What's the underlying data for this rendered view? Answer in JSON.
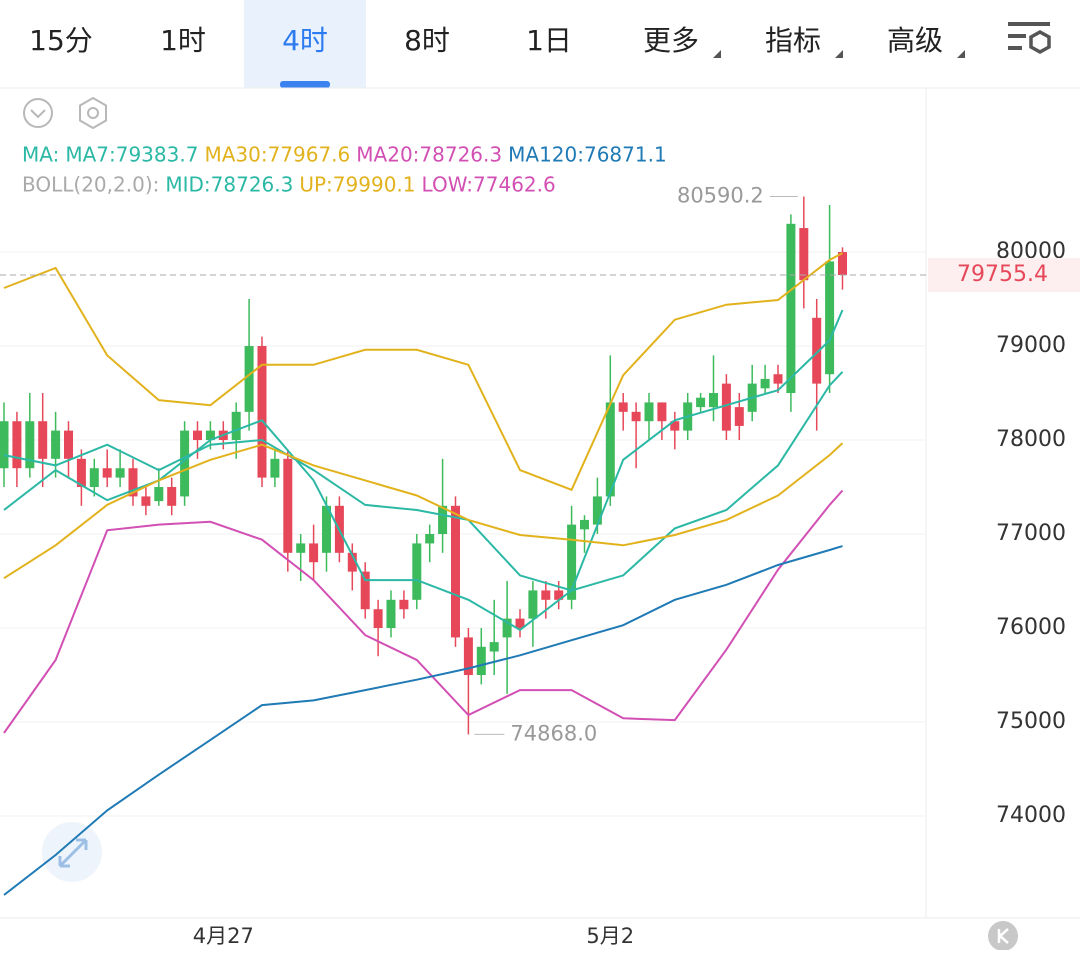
{
  "tabs": [
    "15分",
    "1时",
    "4时",
    "8时",
    "1日",
    "更多",
    "指标",
    "高级"
  ],
  "active_tab": 2,
  "chart_data": {
    "type": "candlestick",
    "ma_legend": [
      "MA:",
      "MA7:79383.7",
      "MA30:77967.6",
      "MA20:78726.3",
      "MA120:76871.1"
    ],
    "ma_legend_colors": [
      "#2bb8a5",
      "#2bb8a5",
      "#e2b21d",
      "#d24fb4",
      "#1f7ab5"
    ],
    "boll_legend": [
      "BOLL(20,2.0):",
      "MID:78726.3",
      "UP:79990.1",
      "LOW:77462.6"
    ],
    "boll_legend_colors": [
      "#aaaaaa",
      "#2bb8a5",
      "#e2b21d",
      "#d24fb4"
    ],
    "categories": [
      null,
      null,
      null,
      null,
      null,
      null,
      null,
      null,
      null,
      null,
      null,
      null,
      null,
      null,
      null,
      null,
      null,
      "4月27",
      null,
      null,
      null,
      null,
      null,
      null,
      null,
      null,
      null,
      null,
      null,
      null,
      null,
      null,
      null,
      null,
      null,
      null,
      null,
      null,
      null,
      null,
      null,
      null,
      null,
      null,
      null,
      null,
      null,
      "5月2",
      null,
      null,
      null,
      null,
      null,
      null,
      null,
      null,
      null,
      null,
      null,
      null,
      null,
      null,
      null,
      null,
      null,
      null
    ],
    "open": [
      77700,
      78200,
      77700,
      78200,
      77800,
      78100,
      77800,
      77500,
      77700,
      77600,
      77700,
      77400,
      77350,
      77500,
      77400,
      78100,
      78000,
      78100,
      78000,
      78300,
      79000,
      77600,
      77800,
      76800,
      76900,
      76800,
      77300,
      76800,
      76600,
      76200,
      76000,
      76300,
      76300,
      76900,
      77000,
      77300,
      75900,
      75500,
      75750,
      75900,
      76100,
      76100,
      76400,
      76400,
      76300,
      77050,
      77100,
      77400,
      78400,
      78300,
      78200,
      78400,
      78200,
      78100,
      78350,
      78350,
      78600,
      78350,
      78300,
      78550,
      78700,
      78500,
      80255,
      79300,
      78700,
      80000
    ],
    "close": [
      78200,
      77700,
      78200,
      77800,
      78100,
      77800,
      77500,
      77700,
      77600,
      77700,
      77400,
      77300,
      77500,
      77300,
      78100,
      78000,
      78100,
      78000,
      78300,
      79000,
      77600,
      77800,
      76800,
      76900,
      76700,
      77300,
      76800,
      76600,
      76200,
      76000,
      76300,
      76200,
      76900,
      77000,
      77300,
      75900,
      75500,
      75800,
      75850,
      76100,
      76000,
      76400,
      76300,
      76300,
      77100,
      77150,
      77400,
      78400,
      78300,
      78200,
      78400,
      78200,
      78100,
      78400,
      78450,
      78500,
      78100,
      78150,
      78600,
      78650,
      78600,
      80300,
      79700,
      78600,
      79900,
      79755.4
    ],
    "high": [
      78400,
      78300,
      78500,
      78500,
      78300,
      78200,
      77900,
      77800,
      77900,
      77900,
      77800,
      77500,
      77700,
      77600,
      78200,
      78200,
      78200,
      78200,
      78400,
      79500,
      79100,
      77900,
      77900,
      77000,
      77100,
      77400,
      77400,
      76900,
      76700,
      76300,
      76400,
      76400,
      77000,
      77100,
      77800,
      77400,
      76000,
      76000,
      76300,
      76500,
      76200,
      76500,
      76500,
      76500,
      77300,
      77200,
      77600,
      78900,
      78500,
      78400,
      78500,
      78400,
      78300,
      78500,
      78500,
      78900,
      78700,
      78500,
      78800,
      78800,
      78800,
      80400,
      80590.2,
      79500,
      80500,
      80050
    ],
    "low": [
      77500,
      77500,
      77600,
      77500,
      77600,
      77600,
      77300,
      77400,
      77500,
      77500,
      77300,
      77200,
      77300,
      77200,
      77300,
      77800,
      77900,
      77900,
      77800,
      78100,
      77500,
      77500,
      76600,
      76500,
      76500,
      76600,
      76700,
      76400,
      76100,
      75700,
      75900,
      76100,
      76200,
      76700,
      76800,
      75800,
      74868,
      75400,
      75500,
      75300,
      75900,
      75800,
      76100,
      76200,
      76200,
      76800,
      77000,
      77300,
      78100,
      77700,
      78000,
      78000,
      77900,
      78000,
      78300,
      78200,
      78000,
      78000,
      78200,
      78500,
      78500,
      78300,
      79400,
      78100,
      78500,
      79600
    ],
    "up_color": "#3dba5c",
    "down_color": "#e6485a",
    "lines": [
      {
        "color": "#e2b21d",
        "x": [
          0,
          4,
          8,
          12,
          16,
          20,
          24,
          28,
          32,
          36,
          40,
          44,
          48,
          52,
          56,
          60,
          64,
          65
        ],
        "values": [
          79617,
          79830,
          78900,
          78425,
          78370,
          78800,
          78800,
          78960,
          78960,
          78800,
          77680,
          77470,
          78690,
          79280,
          79440,
          79490,
          79915,
          79990.1
        ]
      },
      {
        "color": "#d24fb4",
        "x": [
          0,
          4,
          8,
          12,
          16,
          20,
          24,
          28,
          32,
          36,
          40,
          44,
          48,
          52,
          56,
          60,
          64,
          65
        ],
        "values": [
          74883,
          75660,
          77040,
          77100,
          77130,
          76940,
          76510,
          75925,
          75660,
          75075,
          75340,
          75340,
          75040,
          75020,
          75770,
          76620,
          77310,
          77462.6
        ]
      },
      {
        "color": "#2bb8a5",
        "x": [
          0,
          4,
          8,
          12,
          16,
          20,
          24,
          28,
          32,
          36,
          40,
          44,
          48,
          52,
          56,
          60,
          64,
          65
        ],
        "values": [
          77840,
          77730,
          77950,
          77680,
          77950,
          78000,
          77680,
          77310,
          77255,
          77150,
          76560,
          76400,
          76560,
          77060,
          77255,
          77730,
          78580,
          78726.3
        ]
      },
      {
        "color": "#2bb8a5",
        "x": [
          0,
          4,
          8,
          12,
          16,
          20,
          24,
          28,
          32,
          36,
          40,
          44,
          48,
          52,
          56,
          60,
          64,
          65
        ],
        "values": [
          77255,
          77680,
          77360,
          77570,
          78000,
          78210,
          77570,
          76510,
          76510,
          76300,
          75980,
          76400,
          77790,
          78210,
          78370,
          78530,
          79060,
          79383.7
        ]
      },
      {
        "color": "#e2b21d",
        "x": [
          0,
          4,
          8,
          12,
          16,
          20,
          24,
          28,
          32,
          36,
          40,
          44,
          48,
          52,
          56,
          60,
          64,
          65
        ],
        "values": [
          76530,
          76880,
          77310,
          77570,
          77790,
          77950,
          77730,
          77570,
          77410,
          77150,
          76990,
          76940,
          76880,
          76990,
          77150,
          77410,
          77840,
          77967.6
        ]
      },
      {
        "color": "#1f7ab5",
        "x": [
          0,
          4,
          8,
          12,
          16,
          20,
          24,
          28,
          32,
          36,
          40,
          44,
          48,
          52,
          56,
          60,
          64,
          65
        ],
        "values": [
          73160,
          73585,
          74060,
          74440,
          74810,
          75180,
          75230,
          75340,
          75450,
          75570,
          75710,
          75870,
          76030,
          76300,
          76460,
          76670,
          76830,
          76871.1
        ]
      }
    ],
    "max_mark": {
      "index": 62,
      "value": 80590.2,
      "label": "80590.2"
    },
    "min_mark": {
      "index": 36,
      "value": 74868,
      "label": "74868.0"
    },
    "last_price": {
      "value": 79755.4,
      "label": "79755.4"
    },
    "ylim": [
      72915,
      81745
    ],
    "yticks": [
      80000,
      79000,
      78000,
      77000,
      76000,
      75000,
      74000
    ],
    "grid": true
  }
}
